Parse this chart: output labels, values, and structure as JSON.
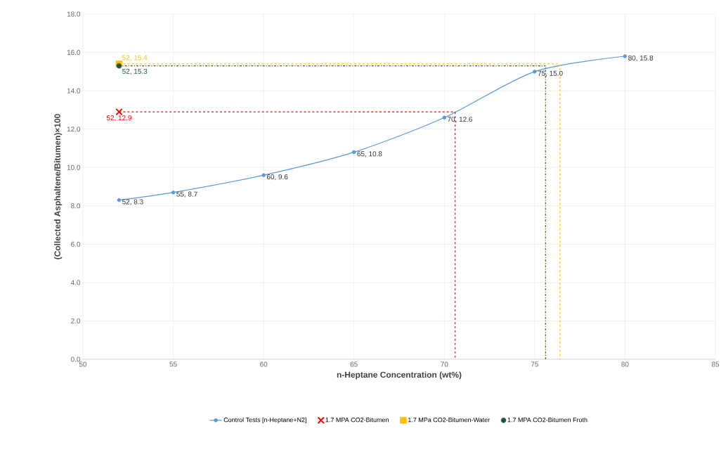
{
  "chart_data": {
    "type": "line",
    "xlabel": "n-Heptane Concentration (wt%)",
    "ylabel": "(Collected Asphaltene/Bitumen)×100",
    "xlim": [
      50,
      85
    ],
    "xticks": [
      50,
      55,
      60,
      65,
      70,
      75,
      80,
      85
    ],
    "ylim": [
      0,
      18
    ],
    "yticks": [
      {
        "value": 0,
        "label": "0.0"
      },
      {
        "value": 2,
        "label": "2.0"
      },
      {
        "value": 4,
        "label": "4.0"
      },
      {
        "value": 6,
        "label": "6.0"
      },
      {
        "value": 8,
        "label": "8.0"
      },
      {
        "value": 10,
        "label": "10.0"
      },
      {
        "value": 12,
        "label": "12.0"
      },
      {
        "value": 14,
        "label": "14.0"
      },
      {
        "value": 16,
        "label": "16.0"
      },
      {
        "value": 18,
        "label": "18.0"
      }
    ],
    "grid": true,
    "legend": "bottom",
    "series": [
      {
        "name": "Control Tests [n-Heptane+N2]",
        "color": "#5b9bd5",
        "marker": "circle",
        "line_style": "solid",
        "x": [
          52,
          55,
          60,
          65,
          70,
          75,
          80
        ],
        "values": [
          8.3,
          8.7,
          9.6,
          10.8,
          12.6,
          15.0,
          15.8
        ],
        "value_labels": [
          "52, 8.3",
          "55, 8.7",
          "60, 9.6",
          "65, 10.8",
          "70, 12.6",
          "75, 15.0",
          "80, 15.8"
        ]
      },
      {
        "name": "1.7 MPA CO2-Bitumen",
        "type": "scatter",
        "color": "#ff0000",
        "marker": "cross",
        "x": [
          52
        ],
        "values": [
          12.9
        ],
        "value_labels": [
          "52, 12.9"
        ]
      },
      {
        "name": "1.7 MPa CO2-Bitumen-Water",
        "type": "scatter",
        "color": "#ffc000",
        "marker": "square",
        "x": [
          52
        ],
        "values": [
          15.4
        ],
        "value_labels": [
          "52, 15.4"
        ]
      },
      {
        "name": "1.7 MPA CO2-Bitumen Froth",
        "type": "scatter",
        "color": "#1e5631",
        "marker": "circle",
        "x": [
          52
        ],
        "values": [
          15.3
        ],
        "value_labels": [
          "52, 15.3"
        ]
      },
      {
        "type": "line",
        "color": "#ff0000",
        "line_style": "dashed",
        "x": [
          52,
          70.6,
          70.6
        ],
        "values": [
          12.9,
          12.9,
          0
        ]
      },
      {
        "type": "line",
        "color": "#ffc000",
        "line_style": "dashed",
        "x": [
          52,
          76.4,
          76.4
        ],
        "values": [
          15.4,
          15.4,
          0
        ]
      },
      {
        "type": "line",
        "color": "#4d5a2a",
        "line_style": "dashdot",
        "x": [
          52,
          75.6,
          75.6
        ],
        "values": [
          15.3,
          15.3,
          0
        ]
      }
    ]
  }
}
